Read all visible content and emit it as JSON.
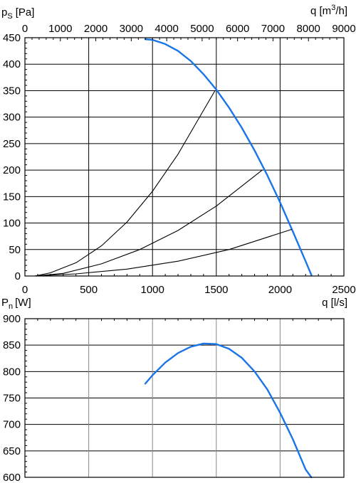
{
  "chart_data": [
    {
      "type": "line",
      "title": "",
      "ylabel": "ps [Pa]",
      "ylabel_main": "p",
      "ylabel_sub": "S",
      "ylabel_unit": "[Pa]",
      "xlabel_top": "q [m3/h]",
      "xlabel_top_main": "q [m",
      "xlabel_top_sup": "3",
      "xlabel_top_end": "/h]",
      "xlim": [
        0,
        2500
      ],
      "ylim": [
        0,
        450
      ],
      "x2lim": [
        0,
        9000
      ],
      "grid": true,
      "x_ticks": [
        "0",
        "500",
        "1000",
        "1500",
        "2000",
        "2500"
      ],
      "x2_ticks": [
        "0",
        "1000",
        "2000",
        "3000",
        "4000",
        "5000",
        "6000",
        "7000",
        "8000",
        "9000"
      ],
      "y_ticks": [
        "0",
        "50",
        "100",
        "150",
        "200",
        "250",
        "300",
        "350",
        "400",
        "450"
      ],
      "series": [
        {
          "color": "#1a75e8",
          "x": [
            943,
            1000,
            1100,
            1200,
            1300,
            1400,
            1500,
            1600,
            1700,
            1800,
            1900,
            2000,
            2100,
            2200,
            2245
          ],
          "y": [
            447,
            446,
            438,
            425,
            406,
            381,
            352,
            318,
            280,
            237,
            190,
            139,
            84,
            28,
            2
          ]
        },
        {
          "color": "#000000",
          "x": [
            78,
            200,
            400,
            600,
            800,
            1000,
            1200,
            1400,
            1490
          ],
          "y": [
            0,
            6,
            25,
            57,
            102,
            160,
            230,
            313,
            350
          ]
        },
        {
          "color": "#000000",
          "x": [
            78,
            300,
            600,
            900,
            1200,
            1500,
            1860
          ],
          "y": [
            0,
            5,
            23,
            50,
            86,
            132,
            200
          ]
        },
        {
          "color": "#000000",
          "x": [
            78,
            400,
            800,
            1200,
            1600,
            2090
          ],
          "y": [
            0,
            4,
            13,
            28,
            50,
            88
          ]
        }
      ]
    },
    {
      "type": "line",
      "title": "",
      "ylabel": "Pn [W]",
      "ylabel_main": "P",
      "ylabel_sub": "n",
      "ylabel_unit": "[W]",
      "xlabel": "q [l/s]",
      "xlim": [
        0,
        2500
      ],
      "ylim": [
        600,
        900
      ],
      "grid": true,
      "y_ticks": [
        "600",
        "650",
        "700",
        "750",
        "800",
        "850",
        "900"
      ],
      "series": [
        {
          "color": "#1a75e8",
          "x": [
            943,
            1000,
            1100,
            1200,
            1300,
            1400,
            1500,
            1600,
            1700,
            1800,
            1900,
            2000,
            2100,
            2200,
            2245
          ],
          "y": [
            777,
            793,
            817,
            835,
            847,
            853,
            852,
            843,
            826,
            800,
            766,
            722,
            672,
            615,
            600
          ]
        }
      ]
    }
  ]
}
